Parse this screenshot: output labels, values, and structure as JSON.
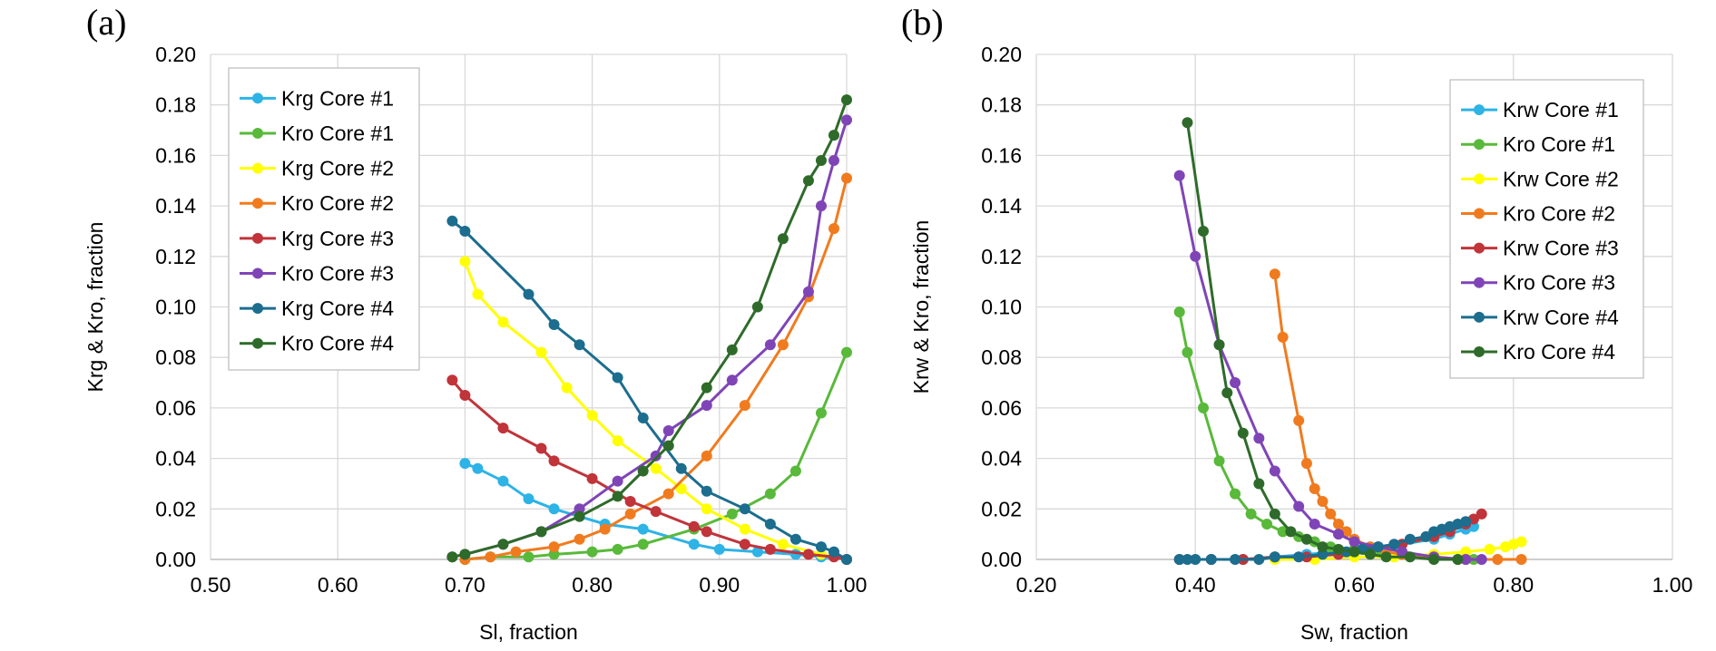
{
  "chart_data": [
    {
      "type": "line",
      "panel_label": "(a)",
      "xlabel": "Sl, fraction",
      "ylabel": "Krg & Kro, fraction",
      "xlim": [
        0.5,
        1.0
      ],
      "ylim": [
        0,
        0.2
      ],
      "xticks": [
        "0.50",
        "0.60",
        "0.70",
        "0.80",
        "0.90",
        "1.00"
      ],
      "yticks": [
        "0.00",
        "0.02",
        "0.04",
        "0.06",
        "0.08",
        "0.10",
        "0.12",
        "0.14",
        "0.16",
        "0.18",
        "0.20"
      ],
      "grid": true,
      "legend_position": "top-left",
      "series": [
        {
          "name": "Krg Core #1",
          "color": "#2EB3E6",
          "x": [
            0.7,
            0.71,
            0.73,
            0.75,
            0.77,
            0.79,
            0.81,
            0.84,
            0.88,
            0.9,
            0.93,
            0.96,
            0.98,
            1.0
          ],
          "y": [
            0.038,
            0.036,
            0.031,
            0.024,
            0.02,
            0.017,
            0.014,
            0.012,
            0.006,
            0.004,
            0.003,
            0.002,
            0.001,
            0.0
          ]
        },
        {
          "name": "Kro Core #1",
          "color": "#59B93A",
          "x": [
            0.7,
            0.72,
            0.75,
            0.77,
            0.8,
            0.82,
            0.84,
            0.88,
            0.91,
            0.94,
            0.96,
            0.98,
            1.0
          ],
          "y": [
            0.0,
            0.001,
            0.001,
            0.002,
            0.003,
            0.004,
            0.006,
            0.012,
            0.018,
            0.026,
            0.035,
            0.058,
            0.082
          ]
        },
        {
          "name": "Krg Core #2",
          "color": "#FFFF00",
          "x": [
            0.7,
            0.71,
            0.73,
            0.76,
            0.78,
            0.8,
            0.82,
            0.85,
            0.87,
            0.89,
            0.92,
            0.95,
            0.98,
            1.0
          ],
          "y": [
            0.118,
            0.105,
            0.094,
            0.082,
            0.068,
            0.057,
            0.047,
            0.036,
            0.028,
            0.02,
            0.012,
            0.006,
            0.002,
            0.0
          ]
        },
        {
          "name": "Kro Core #2",
          "color": "#F07B1F",
          "x": [
            0.7,
            0.72,
            0.74,
            0.77,
            0.79,
            0.81,
            0.83,
            0.86,
            0.89,
            0.92,
            0.95,
            0.97,
            0.99,
            1.0
          ],
          "y": [
            0.0,
            0.001,
            0.003,
            0.005,
            0.008,
            0.012,
            0.018,
            0.026,
            0.041,
            0.061,
            0.085,
            0.104,
            0.131,
            0.151
          ]
        },
        {
          "name": "Krg Core #3",
          "color": "#C0343A",
          "x": [
            0.69,
            0.7,
            0.73,
            0.76,
            0.77,
            0.8,
            0.83,
            0.85,
            0.88,
            0.89,
            0.92,
            0.94,
            0.97,
            0.99,
            1.0
          ],
          "y": [
            0.071,
            0.065,
            0.052,
            0.044,
            0.039,
            0.032,
            0.023,
            0.019,
            0.013,
            0.011,
            0.006,
            0.004,
            0.002,
            0.001,
            0.0
          ]
        },
        {
          "name": "Kro Core #3",
          "color": "#7F45B6",
          "x": [
            0.69,
            0.7,
            0.73,
            0.76,
            0.79,
            0.82,
            0.85,
            0.86,
            0.89,
            0.91,
            0.94,
            0.97,
            0.98,
            0.99,
            1.0
          ],
          "y": [
            0.001,
            0.002,
            0.006,
            0.011,
            0.02,
            0.031,
            0.041,
            0.051,
            0.061,
            0.071,
            0.085,
            0.106,
            0.14,
            0.158,
            0.174
          ]
        },
        {
          "name": "Krg Core #4",
          "color": "#1C6D8E",
          "x": [
            0.69,
            0.7,
            0.75,
            0.77,
            0.79,
            0.82,
            0.84,
            0.87,
            0.89,
            0.92,
            0.94,
            0.96,
            0.98,
            0.99,
            1.0
          ],
          "y": [
            0.134,
            0.13,
            0.105,
            0.093,
            0.085,
            0.072,
            0.056,
            0.036,
            0.027,
            0.02,
            0.014,
            0.008,
            0.005,
            0.003,
            0.0
          ]
        },
        {
          "name": "Kro Core #4",
          "color": "#2E6B2A",
          "x": [
            0.69,
            0.7,
            0.73,
            0.76,
            0.79,
            0.82,
            0.84,
            0.86,
            0.89,
            0.91,
            0.93,
            0.95,
            0.97,
            0.98,
            0.99,
            1.0
          ],
          "y": [
            0.001,
            0.002,
            0.006,
            0.011,
            0.017,
            0.025,
            0.035,
            0.045,
            0.068,
            0.083,
            0.1,
            0.127,
            0.15,
            0.158,
            0.168,
            0.182
          ]
        }
      ]
    },
    {
      "type": "line",
      "panel_label": "(b)",
      "xlabel": "Sw, fraction",
      "ylabel": "Krw & Kro, fraction",
      "xlim": [
        0.2,
        1.0
      ],
      "ylim": [
        0,
        0.2
      ],
      "xticks": [
        "0.20",
        "0.40",
        "0.60",
        "0.80",
        "1.00"
      ],
      "yticks": [
        "0.00",
        "0.02",
        "0.04",
        "0.06",
        "0.08",
        "0.10",
        "0.12",
        "0.14",
        "0.16",
        "0.18",
        "0.20"
      ],
      "grid": true,
      "legend_position": "top-right",
      "series": [
        {
          "name": "Krw Core #1",
          "color": "#2EB3E6",
          "x": [
            0.38,
            0.42,
            0.46,
            0.5,
            0.54,
            0.58,
            0.62,
            0.66,
            0.7,
            0.72,
            0.74,
            0.75
          ],
          "y": [
            0.0,
            0.0,
            0.0,
            0.001,
            0.002,
            0.003,
            0.004,
            0.006,
            0.008,
            0.01,
            0.012,
            0.013
          ]
        },
        {
          "name": "Kro Core #1",
          "color": "#59B93A",
          "x": [
            0.38,
            0.39,
            0.41,
            0.43,
            0.45,
            0.47,
            0.49,
            0.51,
            0.53,
            0.55,
            0.57,
            0.6,
            0.63,
            0.66,
            0.7,
            0.73,
            0.75
          ],
          "y": [
            0.098,
            0.082,
            0.06,
            0.039,
            0.026,
            0.018,
            0.014,
            0.011,
            0.009,
            0.007,
            0.005,
            0.004,
            0.003,
            0.002,
            0.001,
            0.0,
            0.0
          ]
        },
        {
          "name": "Krw Core #2",
          "color": "#FFFF00",
          "x": [
            0.5,
            0.55,
            0.6,
            0.65,
            0.7,
            0.74,
            0.77,
            0.79,
            0.8,
            0.81
          ],
          "y": [
            0.0,
            0.0,
            0.001,
            0.001,
            0.002,
            0.003,
            0.004,
            0.005,
            0.006,
            0.007
          ]
        },
        {
          "name": "Kro Core #2",
          "color": "#F07B1F",
          "x": [
            0.5,
            0.51,
            0.53,
            0.54,
            0.55,
            0.56,
            0.57,
            0.58,
            0.59,
            0.6,
            0.62,
            0.64,
            0.66,
            0.7,
            0.74,
            0.78,
            0.81
          ],
          "y": [
            0.113,
            0.088,
            0.055,
            0.038,
            0.028,
            0.023,
            0.018,
            0.014,
            0.011,
            0.008,
            0.005,
            0.003,
            0.002,
            0.001,
            0.0,
            0.0,
            0.0
          ]
        },
        {
          "name": "Krw Core #3",
          "color": "#C0343A",
          "x": [
            0.38,
            0.42,
            0.46,
            0.5,
            0.54,
            0.58,
            0.62,
            0.66,
            0.7,
            0.72,
            0.74,
            0.75,
            0.76
          ],
          "y": [
            0.0,
            0.0,
            0.0,
            0.001,
            0.001,
            0.002,
            0.004,
            0.006,
            0.009,
            0.011,
            0.014,
            0.016,
            0.018
          ]
        },
        {
          "name": "Kro Core #3",
          "color": "#7F45B6",
          "x": [
            0.38,
            0.4,
            0.43,
            0.45,
            0.48,
            0.5,
            0.53,
            0.55,
            0.58,
            0.6,
            0.63,
            0.66,
            0.7,
            0.74,
            0.76
          ],
          "y": [
            0.152,
            0.12,
            0.085,
            0.07,
            0.048,
            0.035,
            0.021,
            0.014,
            0.01,
            0.007,
            0.005,
            0.003,
            0.001,
            0.0,
            0.0
          ]
        },
        {
          "name": "Krw Core #4",
          "color": "#1C6D8E",
          "x": [
            0.38,
            0.39,
            0.4,
            0.42,
            0.45,
            0.48,
            0.5,
            0.53,
            0.56,
            0.59,
            0.61,
            0.63,
            0.65,
            0.67,
            0.69,
            0.7,
            0.71,
            0.72,
            0.73,
            0.74
          ],
          "y": [
            0.0,
            0.0,
            0.0,
            0.0,
            0.0,
            0.0,
            0.001,
            0.001,
            0.002,
            0.003,
            0.004,
            0.005,
            0.006,
            0.008,
            0.009,
            0.011,
            0.012,
            0.013,
            0.014,
            0.015
          ]
        },
        {
          "name": "Kro Core #4",
          "color": "#2E6B2A",
          "x": [
            0.39,
            0.41,
            0.43,
            0.44,
            0.46,
            0.48,
            0.5,
            0.52,
            0.54,
            0.56,
            0.58,
            0.6,
            0.62,
            0.64,
            0.67,
            0.7,
            0.73
          ],
          "y": [
            0.173,
            0.13,
            0.085,
            0.066,
            0.05,
            0.03,
            0.018,
            0.011,
            0.008,
            0.005,
            0.004,
            0.003,
            0.002,
            0.001,
            0.001,
            0.0,
            0.0
          ]
        }
      ]
    }
  ]
}
